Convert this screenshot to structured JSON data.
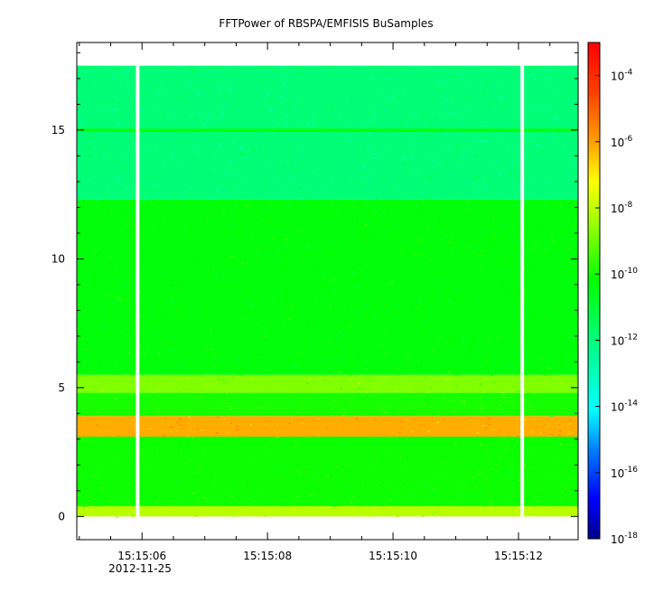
{
  "chart_data": {
    "type": "heatmap",
    "title": "FFTPower of RBSPA/EMFISIS  BuSamples",
    "xlabel": "",
    "ylabel": "",
    "date_label": "2012-11-25",
    "x_ticks": [
      "15:15:06",
      "15:15:08",
      "15:15:10",
      "15:15:12"
    ],
    "x_tick_seconds": [
      6,
      8,
      10,
      12
    ],
    "xlim_seconds": [
      4.96,
      12.95
    ],
    "y_ticks": [
      0,
      5,
      10,
      15
    ],
    "ylim": [
      -0.9,
      18.4
    ],
    "data_extent_y": [
      0,
      17.5
    ],
    "data_gaps_seconds": [
      5.93,
      12.06
    ],
    "colorbar": {
      "scale": "log",
      "range": [
        1e-18,
        0.001
      ],
      "tick_labels": [
        {
          "base": "10",
          "exp": "-4"
        },
        {
          "base": "10",
          "exp": "-6"
        },
        {
          "base": "10",
          "exp": "-8"
        },
        {
          "base": "10",
          "exp": "-10"
        },
        {
          "base": "10",
          "exp": "-12"
        },
        {
          "base": "10",
          "exp": "-14"
        },
        {
          "base": "10",
          "exp": "-16"
        },
        {
          "base": "10",
          "exp": "-18"
        }
      ],
      "tick_log_values": [
        -4,
        -6,
        -8,
        -10,
        -12,
        -14,
        -16,
        -18
      ],
      "colors": [
        "#0000a0",
        "#0000ff",
        "#00a0ff",
        "#00ffff",
        "#00ff80",
        "#00ff00",
        "#a0ff00",
        "#ffff00",
        "#ffa000",
        "#ff4000",
        "#ff0000"
      ]
    },
    "bands": [
      {
        "y_from": 0,
        "y_to": 0.4,
        "log_power": -8.6
      },
      {
        "y_from": 0.4,
        "y_to": 3.1,
        "log_power": -10.4
      },
      {
        "y_from": 3.1,
        "y_to": 3.9,
        "log_power": -6.2
      },
      {
        "y_from": 3.9,
        "y_to": 4.8,
        "log_power": -10.3
      },
      {
        "y_from": 4.8,
        "y_to": 5.5,
        "log_power": -9.3
      },
      {
        "y_from": 5.5,
        "y_to": 12.3,
        "log_power": -10.6
      },
      {
        "y_from": 12.3,
        "y_to": 17.5,
        "log_power": -11.9
      }
    ],
    "line_features": [
      {
        "y": 15.0,
        "log_power": -10.6
      }
    ]
  }
}
